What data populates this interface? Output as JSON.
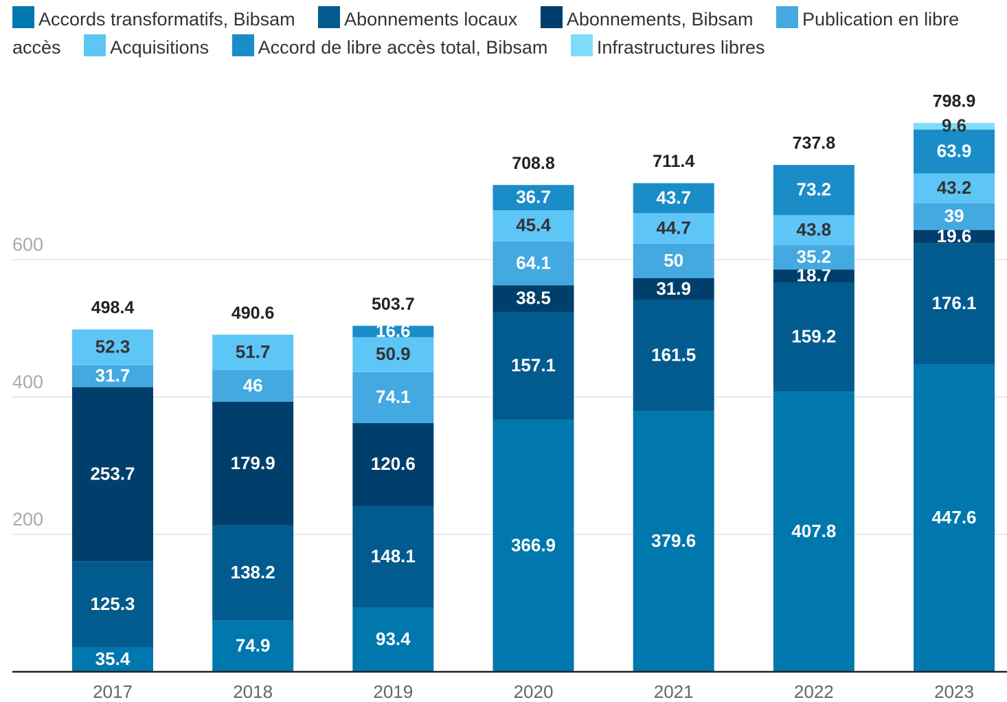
{
  "chart_data": {
    "type": "stacked_bar",
    "categories": [
      "2017",
      "2018",
      "2019",
      "2020",
      "2021",
      "2022",
      "2023"
    ],
    "series": [
      {
        "name": "Accords transformatifs, Bibsam",
        "color": "#0077ad",
        "values": [
          35.4,
          74.9,
          93.4,
          366.9,
          379.6,
          407.8,
          447.6
        ]
      },
      {
        "name": "Abonnements locaux",
        "color": "#015b8e",
        "values": [
          125.3,
          138.2,
          148.1,
          157.1,
          161.5,
          159.2,
          176.1
        ]
      },
      {
        "name": "Abonnements, Bibsam",
        "color": "#003f6c",
        "values": [
          253.7,
          179.9,
          120.6,
          38.5,
          31.9,
          18.7,
          19.6
        ]
      },
      {
        "name": "Publication en libre accès",
        "color": "#43a9e0",
        "values": [
          31.7,
          46,
          74.1,
          64.1,
          50,
          35.2,
          39
        ]
      },
      {
        "name": "Acquisitions",
        "color": "#5ec5f7",
        "values": [
          52.3,
          51.7,
          50.9,
          45.4,
          44.7,
          43.8,
          43.2
        ]
      },
      {
        "name": "Accord de libre accès total, Bibsam",
        "color": "#1a8dc8",
        "values": [
          null,
          null,
          16.6,
          36.7,
          43.7,
          73.2,
          63.9
        ]
      },
      {
        "name": "Infrastructures libres",
        "color": "#7edcfb",
        "values": [
          null,
          null,
          null,
          null,
          null,
          null,
          9.6
        ]
      }
    ],
    "totals": [
      498.4,
      490.6,
      503.7,
      708.8,
      711.4,
      737.8,
      798.9
    ],
    "ylim": [
      0,
      840
    ],
    "yticks": [
      200,
      400,
      600
    ],
    "grid": true
  }
}
